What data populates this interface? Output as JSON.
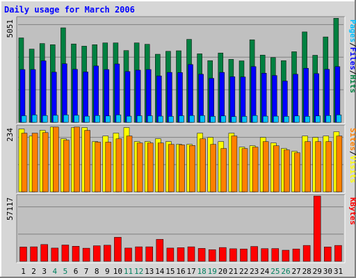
{
  "chart_data": [
    {
      "type": "bar",
      "panel": "hits-files-pages",
      "title": "Daily usage for March 2006",
      "ylabel_parts": [
        "Pages",
        "/",
        "Files",
        "/",
        "Hits"
      ],
      "ymax_label": "5051",
      "ylim": [
        0,
        5051
      ],
      "categories": [
        "1",
        "2",
        "3",
        "4",
        "5",
        "6",
        "7",
        "8",
        "9",
        "10",
        "11",
        "12",
        "13",
        "14",
        "15",
        "16",
        "17",
        "18",
        "19",
        "20",
        "21",
        "22",
        "23",
        "24",
        "25",
        "26",
        "27",
        "28",
        "29",
        "30",
        "31"
      ],
      "weekend_days": [
        "4",
        "5",
        "11",
        "12",
        "18",
        "19",
        "25",
        "26"
      ],
      "series": [
        {
          "name": "Hits",
          "color": "#008040",
          "values": [
            4090,
            3550,
            3820,
            3760,
            4580,
            3800,
            3690,
            3760,
            3850,
            3850,
            3480,
            3850,
            3780,
            3300,
            3440,
            3470,
            4020,
            3320,
            2990,
            3360,
            3050,
            2980,
            4000,
            3260,
            3140,
            2990,
            3420,
            4380,
            3250,
            4140,
            5040
          ]
        },
        {
          "name": "Files",
          "color": "#0000ff",
          "values": [
            2560,
            2560,
            2980,
            2430,
            2840,
            2570,
            2440,
            2730,
            2560,
            2830,
            2460,
            2530,
            2560,
            2250,
            2420,
            2410,
            2800,
            2330,
            2130,
            2420,
            2210,
            2200,
            2700,
            2380,
            2270,
            2000,
            2330,
            2620,
            2360,
            2570,
            2700
          ]
        },
        {
          "name": "Pages",
          "color": "#00c0ff",
          "values": [
            320,
            360,
            330,
            340,
            360,
            340,
            300,
            330,
            310,
            360,
            300,
            320,
            320,
            300,
            290,
            320,
            330,
            330,
            290,
            310,
            280,
            290,
            330,
            300,
            300,
            290,
            310,
            290,
            310,
            330,
            360
          ]
        }
      ]
    },
    {
      "type": "bar",
      "panel": "sites-visits",
      "ylabel_parts": [
        "Sites",
        "/",
        "Visits"
      ],
      "ymax_label": "234",
      "ylim": [
        0,
        234
      ],
      "series": [
        {
          "name": "Visits",
          "color": "#ffff00",
          "values": [
            225,
            200,
            220,
            232,
            190,
            230,
            230,
            180,
            200,
            210,
            230,
            180,
            180,
            190,
            180,
            170,
            170,
            210,
            195,
            180,
            210,
            160,
            165,
            195,
            175,
            155,
            145,
            200,
            195,
            200,
            215
          ]
        },
        {
          "name": "Sites",
          "color": "#ff8000",
          "values": [
            210,
            210,
            212,
            232,
            185,
            232,
            220,
            178,
            178,
            190,
            200,
            175,
            175,
            175,
            170,
            168,
            166,
            190,
            170,
            155,
            200,
            155,
            160,
            180,
            165,
            150,
            140,
            180,
            180,
            180,
            200
          ]
        }
      ]
    },
    {
      "type": "bar",
      "panel": "kbytes",
      "ylabel_parts": [
        "KBytes"
      ],
      "ymax_label": "57117",
      "ylim": [
        0,
        57117
      ],
      "series": [
        {
          "name": "KBytes",
          "color": "#ff0000",
          "values": [
            12500,
            12700,
            14700,
            11600,
            14300,
            13200,
            11500,
            13600,
            14100,
            21000,
            11600,
            12700,
            12700,
            19200,
            11600,
            11900,
            12700,
            11300,
            10200,
            12100,
            11000,
            10800,
            13000,
            11100,
            11200,
            9700,
            10800,
            13900,
            57117,
            12600,
            13900
          ]
        }
      ]
    }
  ]
}
